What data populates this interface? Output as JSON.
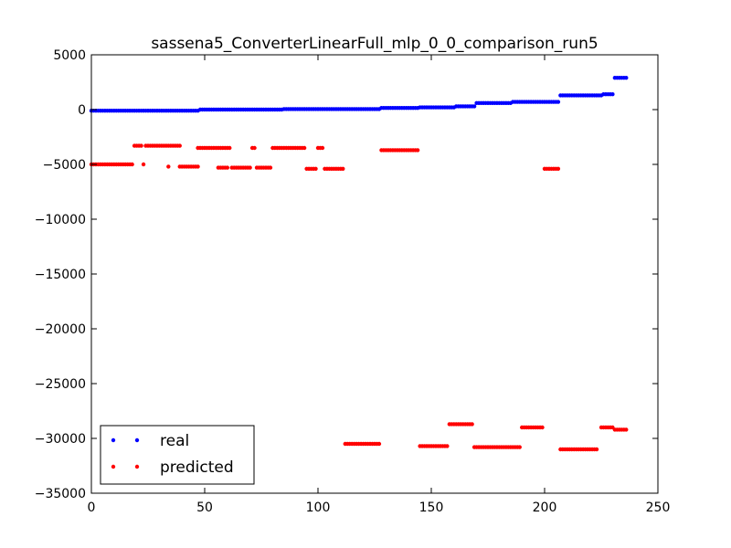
{
  "chart_data": {
    "type": "scatter",
    "title": "sassena5_ConverterLinearFull_mlp_0_0_comparison_run5",
    "xlabel": "",
    "ylabel": "",
    "xlim": [
      0,
      250
    ],
    "ylim": [
      -35000,
      5000
    ],
    "x_ticks": [
      0,
      50,
      100,
      150,
      200,
      250
    ],
    "y_ticks": [
      5000,
      0,
      -5000,
      -10000,
      -15000,
      -20000,
      -25000,
      -30000,
      -35000
    ],
    "x_tick_labels": [
      "0",
      "50",
      "100",
      "150",
      "200",
      "250"
    ],
    "y_tick_labels": [
      "5000",
      "0",
      "−5000",
      "−10000",
      "−15000",
      "−20000",
      "−25000",
      "−30000",
      "−35000"
    ],
    "grid": false,
    "legend_position": "lower-left",
    "series": [
      {
        "name": "real",
        "color": "#0000ff",
        "segments": [
          {
            "x0": 0,
            "x1": 47,
            "y": -100
          },
          {
            "x0": 48,
            "x1": 84,
            "y": 0
          },
          {
            "x0": 85,
            "x1": 127,
            "y": 50
          },
          {
            "x0": 128,
            "x1": 144,
            "y": 150
          },
          {
            "x0": 145,
            "x1": 160,
            "y": 200
          },
          {
            "x0": 161,
            "x1": 169,
            "y": 300
          },
          {
            "x0": 170,
            "x1": 185,
            "y": 600
          },
          {
            "x0": 186,
            "x1": 206,
            "y": 700
          },
          {
            "x0": 207,
            "x1": 225,
            "y": 1300
          },
          {
            "x0": 226,
            "x1": 230,
            "y": 1400
          },
          {
            "x0": 231,
            "x1": 236,
            "y": 2900
          }
        ]
      },
      {
        "name": "predicted",
        "color": "#ff0000",
        "segments": [
          {
            "x0": 0,
            "x1": 18,
            "y": -5000
          },
          {
            "x0": 19,
            "x1": 22,
            "y": -3300
          },
          {
            "x0": 23,
            "x1": 23,
            "y": -5000
          },
          {
            "x0": 24,
            "x1": 39,
            "y": -3300
          },
          {
            "x0": 34,
            "x1": 34,
            "y": -5200
          },
          {
            "x0": 39,
            "x1": 47,
            "y": -5200
          },
          {
            "x0": 47,
            "x1": 61,
            "y": -3500
          },
          {
            "x0": 56,
            "x1": 60,
            "y": -5300
          },
          {
            "x0": 62,
            "x1": 70,
            "y": -5300
          },
          {
            "x0": 71,
            "x1": 72,
            "y": -3500
          },
          {
            "x0": 73,
            "x1": 79,
            "y": -5300
          },
          {
            "x0": 80,
            "x1": 94,
            "y": -3500
          },
          {
            "x0": 95,
            "x1": 99,
            "y": -5400
          },
          {
            "x0": 100,
            "x1": 102,
            "y": -3500
          },
          {
            "x0": 103,
            "x1": 111,
            "y": -5400
          },
          {
            "x0": 128,
            "x1": 144,
            "y": -3700
          },
          {
            "x0": 200,
            "x1": 206,
            "y": -5400
          },
          {
            "x0": 112,
            "x1": 127,
            "y": -30500
          },
          {
            "x0": 145,
            "x1": 157,
            "y": -30700
          },
          {
            "x0": 158,
            "x1": 168,
            "y": -28700
          },
          {
            "x0": 169,
            "x1": 189,
            "y": -30800
          },
          {
            "x0": 190,
            "x1": 199,
            "y": -29000
          },
          {
            "x0": 207,
            "x1": 223,
            "y": -31000
          },
          {
            "x0": 225,
            "x1": 230,
            "y": -29000
          },
          {
            "x0": 231,
            "x1": 236,
            "y": -29200
          }
        ]
      }
    ]
  }
}
